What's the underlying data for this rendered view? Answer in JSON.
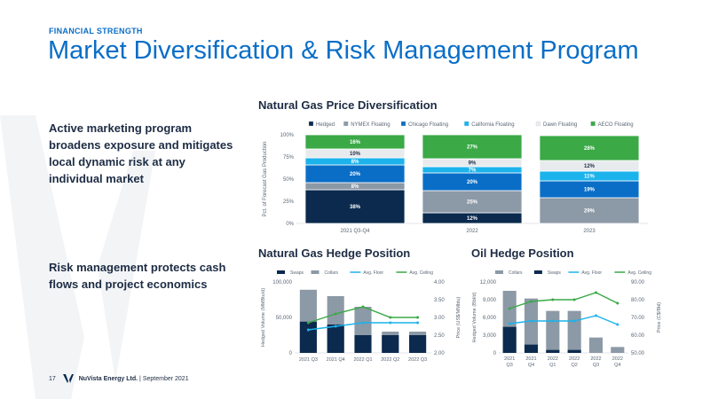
{
  "slide": {
    "kicker": "FINANCIAL STRENGTH",
    "title": "Market Diversification & Risk Management Program",
    "bullet1": "Active marketing program broadens exposure and mitigates local dynamic risk at any individual market",
    "bullet2": "Risk management protects cash flows and project economics",
    "footer": {
      "page": "17",
      "company": "NuVista Energy Ltd.",
      "separator": "|",
      "date": "September 2021"
    }
  },
  "sections": {
    "gas_price": "Natural Gas Price Diversification",
    "gas_hedge": "Natural Gas Hedge Position",
    "oil_hedge": "Oil Hedge Position"
  },
  "chart_data": [
    {
      "id": "gas-price-diversification",
      "type": "bar",
      "stacked": true,
      "ylabel": "Pct. of Forecast Gas Production",
      "yticks": [
        "0%",
        "25%",
        "50%",
        "75%",
        "100%"
      ],
      "ylim": [
        0,
        100
      ],
      "categories": [
        "2021 Q3-Q4",
        "2022",
        "2023"
      ],
      "legend_position": "top",
      "series": [
        {
          "name": "Hedged",
          "color": "#0b2a4e",
          "values": [
            38,
            12,
            0
          ],
          "labels": [
            "38%",
            "12%",
            ""
          ]
        },
        {
          "name": "NYMEX Floating",
          "color": "#8c99a6",
          "values": [
            8,
            25,
            29
          ],
          "labels": [
            "8%",
            "25%",
            "29%"
          ]
        },
        {
          "name": "Chicago Floating",
          "color": "#0a6ec7",
          "values": [
            20,
            20,
            19
          ],
          "labels": [
            "20%",
            "20%",
            "19%"
          ]
        },
        {
          "name": "California Floating",
          "color": "#1cb3ec",
          "values": [
            8,
            7,
            11
          ],
          "labels": [
            "8%",
            "7%",
            "11%"
          ]
        },
        {
          "name": "Dawn Floating",
          "color": "#e8ebee",
          "values": [
            10,
            9,
            12
          ],
          "labels": [
            "10%",
            "9%",
            "12%"
          ]
        },
        {
          "name": "AECO Floating",
          "color": "#3aa946",
          "values": [
            16,
            27,
            28
          ],
          "labels": [
            "16%",
            "27%",
            "28%"
          ]
        }
      ]
    },
    {
      "id": "gas-hedge-position",
      "type": "bar",
      "stacked": false,
      "overlap": true,
      "ylabel": "Hedged Volume (MMBtu/d)",
      "y2label": "Price (US$/MMbtu)",
      "ylim": [
        0,
        100000
      ],
      "yticks": [
        "0",
        "50,000",
        "100,000"
      ],
      "y2lim": [
        2.0,
        4.0
      ],
      "y2ticks": [
        "2.00",
        "2.50",
        "3.00",
        "3.50",
        "4.00"
      ],
      "categories": [
        "2021 Q3",
        "2021 Q4",
        "2022 Q1",
        "2022 Q2",
        "2022 Q3"
      ],
      "series": [
        {
          "name": "Swaps",
          "kind": "bar",
          "axis": "left",
          "color": "#0b2a4e",
          "values": [
            44000,
            40000,
            25000,
            25000,
            25000
          ]
        },
        {
          "name": "Collars",
          "kind": "bar",
          "axis": "left",
          "color": "#8c99a6",
          "values": [
            89000,
            80000,
            65000,
            30000,
            30000
          ]
        },
        {
          "name": "Avg. Floor",
          "kind": "line",
          "axis": "right",
          "color": "#1cb3ec",
          "values": [
            2.65,
            2.75,
            2.85,
            2.85,
            2.85
          ]
        },
        {
          "name": "Avg. Ceiling",
          "kind": "line",
          "axis": "right",
          "color": "#3aa946",
          "values": [
            2.85,
            3.1,
            3.3,
            3.0,
            3.0
          ]
        }
      ]
    },
    {
      "id": "oil-hedge-position",
      "type": "bar",
      "stacked": false,
      "overlap": true,
      "ylabel": "Hedged Volume (Bbl/d)",
      "y2label": "Price (C$/Bbl)",
      "ylim": [
        0,
        12000
      ],
      "yticks": [
        "0",
        "3,000",
        "6,000",
        "9,000",
        "12,000"
      ],
      "y2lim": [
        50,
        90
      ],
      "y2ticks": [
        "50.00",
        "60.00",
        "70.00",
        "80.00",
        "90.00"
      ],
      "categories": [
        [
          "2021",
          "Q3"
        ],
        [
          "2021",
          "Q4"
        ],
        [
          "2022",
          "Q1"
        ],
        [
          "2022",
          "Q2"
        ],
        [
          "2022",
          "Q3"
        ],
        [
          "2022",
          "Q4"
        ]
      ],
      "series": [
        {
          "name": "Collars",
          "kind": "bar",
          "axis": "left",
          "color": "#8c99a6",
          "values": [
            10500,
            9200,
            7100,
            7100,
            2600,
            1000
          ]
        },
        {
          "name": "Swaps",
          "kind": "bar",
          "axis": "left",
          "color": "#0b2a4e",
          "values": [
            4400,
            1400,
            500,
            500,
            0,
            0
          ]
        },
        {
          "name": "Avg. Floor",
          "kind": "line",
          "axis": "right",
          "color": "#1cb3ec",
          "values": [
            66.5,
            68,
            68,
            68,
            71,
            66
          ]
        },
        {
          "name": "Avg. Ceiling",
          "kind": "line",
          "axis": "right",
          "color": "#3aa946",
          "values": [
            75,
            79,
            80,
            80,
            84,
            78
          ]
        }
      ]
    }
  ]
}
